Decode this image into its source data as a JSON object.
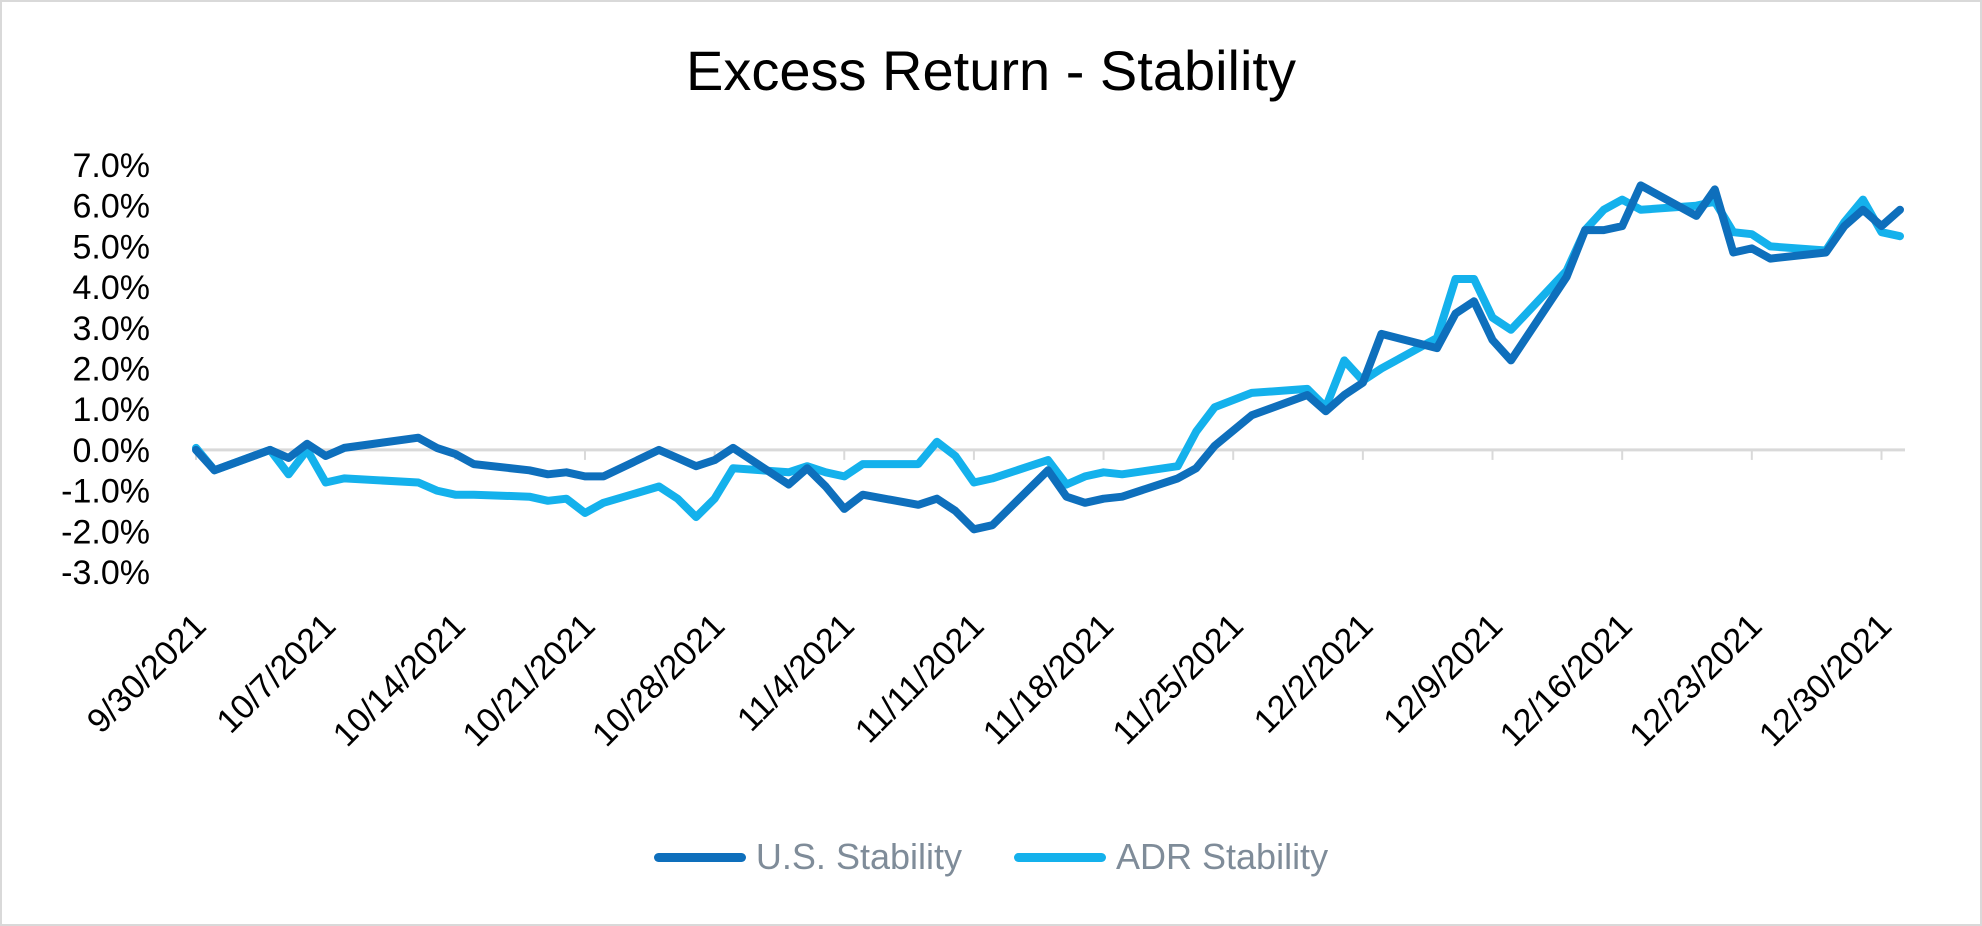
{
  "chart_data": {
    "type": "line",
    "title": "Excess Return - Stability",
    "xlabel": "",
    "ylabel": "",
    "ylim": [
      -3.0,
      7.0
    ],
    "y_ticks": [
      "7.0%",
      "6.0%",
      "5.0%",
      "4.0%",
      "3.0%",
      "2.0%",
      "1.0%",
      "0.0%",
      "-1.0%",
      "-2.0%",
      "-3.0%"
    ],
    "y_tick_values": [
      7,
      6,
      5,
      4,
      3,
      2,
      1,
      0,
      -1,
      -2,
      -3
    ],
    "x_ticks": [
      "9/30/2021",
      "10/7/2021",
      "10/14/2021",
      "10/21/2021",
      "10/28/2021",
      "11/4/2021",
      "11/11/2021",
      "11/18/2021",
      "11/25/2021",
      "12/2/2021",
      "12/9/2021",
      "12/16/2021",
      "12/23/2021",
      "12/30/2021"
    ],
    "x_domain": [
      "9/30/2021",
      "12/31/2021"
    ],
    "grid": false,
    "legend_position": "bottom",
    "series": [
      {
        "name": "U.S. Stability",
        "color": "#0e6fbc",
        "points": [
          [
            "9/30/2021",
            0.0
          ],
          [
            "10/1/2021",
            -0.5
          ],
          [
            "10/4/2021",
            0.0
          ],
          [
            "10/5/2021",
            -0.2
          ],
          [
            "10/6/2021",
            0.15
          ],
          [
            "10/7/2021",
            -0.15
          ],
          [
            "10/8/2021",
            0.05
          ],
          [
            "10/12/2021",
            0.3
          ],
          [
            "10/13/2021",
            0.05
          ],
          [
            "10/14/2021",
            -0.1
          ],
          [
            "10/15/2021",
            -0.35
          ],
          [
            "10/18/2021",
            -0.5
          ],
          [
            "10/19/2021",
            -0.6
          ],
          [
            "10/20/2021",
            -0.55
          ],
          [
            "10/21/2021",
            -0.65
          ],
          [
            "10/22/2021",
            -0.65
          ],
          [
            "10/25/2021",
            0.0
          ],
          [
            "10/26/2021",
            -0.2
          ],
          [
            "10/27/2021",
            -0.4
          ],
          [
            "10/28/2021",
            -0.25
          ],
          [
            "10/29/2021",
            0.05
          ],
          [
            "11/1/2021",
            -0.85
          ],
          [
            "11/2/2021",
            -0.45
          ],
          [
            "11/3/2021",
            -0.9
          ],
          [
            "11/4/2021",
            -1.45
          ],
          [
            "11/5/2021",
            -1.1
          ],
          [
            "11/8/2021",
            -1.35
          ],
          [
            "11/9/2021",
            -1.2
          ],
          [
            "11/10/2021",
            -1.5
          ],
          [
            "11/11/2021",
            -1.95
          ],
          [
            "11/12/2021",
            -1.85
          ],
          [
            "11/15/2021",
            -0.5
          ],
          [
            "11/16/2021",
            -1.15
          ],
          [
            "11/17/2021",
            -1.3
          ],
          [
            "11/18/2021",
            -1.2
          ],
          [
            "11/19/2021",
            -1.15
          ],
          [
            "11/22/2021",
            -0.7
          ],
          [
            "11/23/2021",
            -0.45
          ],
          [
            "11/24/2021",
            0.1
          ],
          [
            "11/26/2021",
            0.85
          ],
          [
            "11/29/2021",
            1.35
          ],
          [
            "11/30/2021",
            0.95
          ],
          [
            "12/1/2021",
            1.35
          ],
          [
            "12/2/2021",
            1.65
          ],
          [
            "12/3/2021",
            2.85
          ],
          [
            "12/6/2021",
            2.5
          ],
          [
            "12/7/2021",
            3.35
          ],
          [
            "12/8/2021",
            3.65
          ],
          [
            "12/9/2021",
            2.7
          ],
          [
            "12/10/2021",
            2.2
          ],
          [
            "12/13/2021",
            4.25
          ],
          [
            "12/14/2021",
            5.4
          ],
          [
            "12/15/2021",
            5.4
          ],
          [
            "12/16/2021",
            5.5
          ],
          [
            "12/17/2021",
            6.5
          ],
          [
            "12/20/2021",
            5.75
          ],
          [
            "12/21/2021",
            6.4
          ],
          [
            "12/22/2021",
            4.85
          ],
          [
            "12/23/2021",
            4.95
          ],
          [
            "12/24/2021",
            4.7
          ],
          [
            "12/27/2021",
            4.85
          ],
          [
            "12/28/2021",
            5.5
          ],
          [
            "12/29/2021",
            5.9
          ],
          [
            "12/30/2021",
            5.5
          ],
          [
            "12/31/2021",
            5.9
          ]
        ]
      },
      {
        "name": "ADR Stability",
        "color": "#14b1ec",
        "points": [
          [
            "9/30/2021",
            0.05
          ],
          [
            "10/1/2021",
            -0.5
          ],
          [
            "10/4/2021",
            0.0
          ],
          [
            "10/5/2021",
            -0.6
          ],
          [
            "10/6/2021",
            0.0
          ],
          [
            "10/7/2021",
            -0.8
          ],
          [
            "10/8/2021",
            -0.7
          ],
          [
            "10/12/2021",
            -0.8
          ],
          [
            "10/13/2021",
            -1.0
          ],
          [
            "10/14/2021",
            -1.1
          ],
          [
            "10/15/2021",
            -1.1
          ],
          [
            "10/18/2021",
            -1.15
          ],
          [
            "10/19/2021",
            -1.25
          ],
          [
            "10/20/2021",
            -1.2
          ],
          [
            "10/21/2021",
            -1.55
          ],
          [
            "10/22/2021",
            -1.3
          ],
          [
            "10/25/2021",
            -0.9
          ],
          [
            "10/26/2021",
            -1.2
          ],
          [
            "10/27/2021",
            -1.65
          ],
          [
            "10/28/2021",
            -1.2
          ],
          [
            "10/29/2021",
            -0.45
          ],
          [
            "11/1/2021",
            -0.55
          ],
          [
            "11/2/2021",
            -0.4
          ],
          [
            "11/3/2021",
            -0.55
          ],
          [
            "11/4/2021",
            -0.65
          ],
          [
            "11/5/2021",
            -0.35
          ],
          [
            "11/8/2021",
            -0.35
          ],
          [
            "11/9/2021",
            0.2
          ],
          [
            "11/10/2021",
            -0.15
          ],
          [
            "11/11/2021",
            -0.8
          ],
          [
            "11/12/2021",
            -0.7
          ],
          [
            "11/15/2021",
            -0.25
          ],
          [
            "11/16/2021",
            -0.85
          ],
          [
            "11/17/2021",
            -0.65
          ],
          [
            "11/18/2021",
            -0.55
          ],
          [
            "11/19/2021",
            -0.6
          ],
          [
            "11/22/2021",
            -0.4
          ],
          [
            "11/23/2021",
            0.45
          ],
          [
            "11/24/2021",
            1.05
          ],
          [
            "11/26/2021",
            1.4
          ],
          [
            "11/29/2021",
            1.5
          ],
          [
            "11/30/2021",
            1.05
          ],
          [
            "12/1/2021",
            2.2
          ],
          [
            "12/2/2021",
            1.7
          ],
          [
            "12/3/2021",
            2.0
          ],
          [
            "12/6/2021",
            2.75
          ],
          [
            "12/7/2021",
            4.2
          ],
          [
            "12/8/2021",
            4.2
          ],
          [
            "12/9/2021",
            3.25
          ],
          [
            "12/10/2021",
            2.95
          ],
          [
            "12/13/2021",
            4.4
          ],
          [
            "12/14/2021",
            5.4
          ],
          [
            "12/15/2021",
            5.9
          ],
          [
            "12/16/2021",
            6.15
          ],
          [
            "12/17/2021",
            5.9
          ],
          [
            "12/20/2021",
            6.0
          ],
          [
            "12/21/2021",
            6.1
          ],
          [
            "12/22/2021",
            5.35
          ],
          [
            "12/23/2021",
            5.3
          ],
          [
            "12/24/2021",
            5.0
          ],
          [
            "12/27/2021",
            4.9
          ],
          [
            "12/28/2021",
            5.6
          ],
          [
            "12/29/2021",
            6.15
          ],
          [
            "12/30/2021",
            5.35
          ],
          [
            "12/31/2021",
            5.25
          ]
        ]
      }
    ]
  }
}
